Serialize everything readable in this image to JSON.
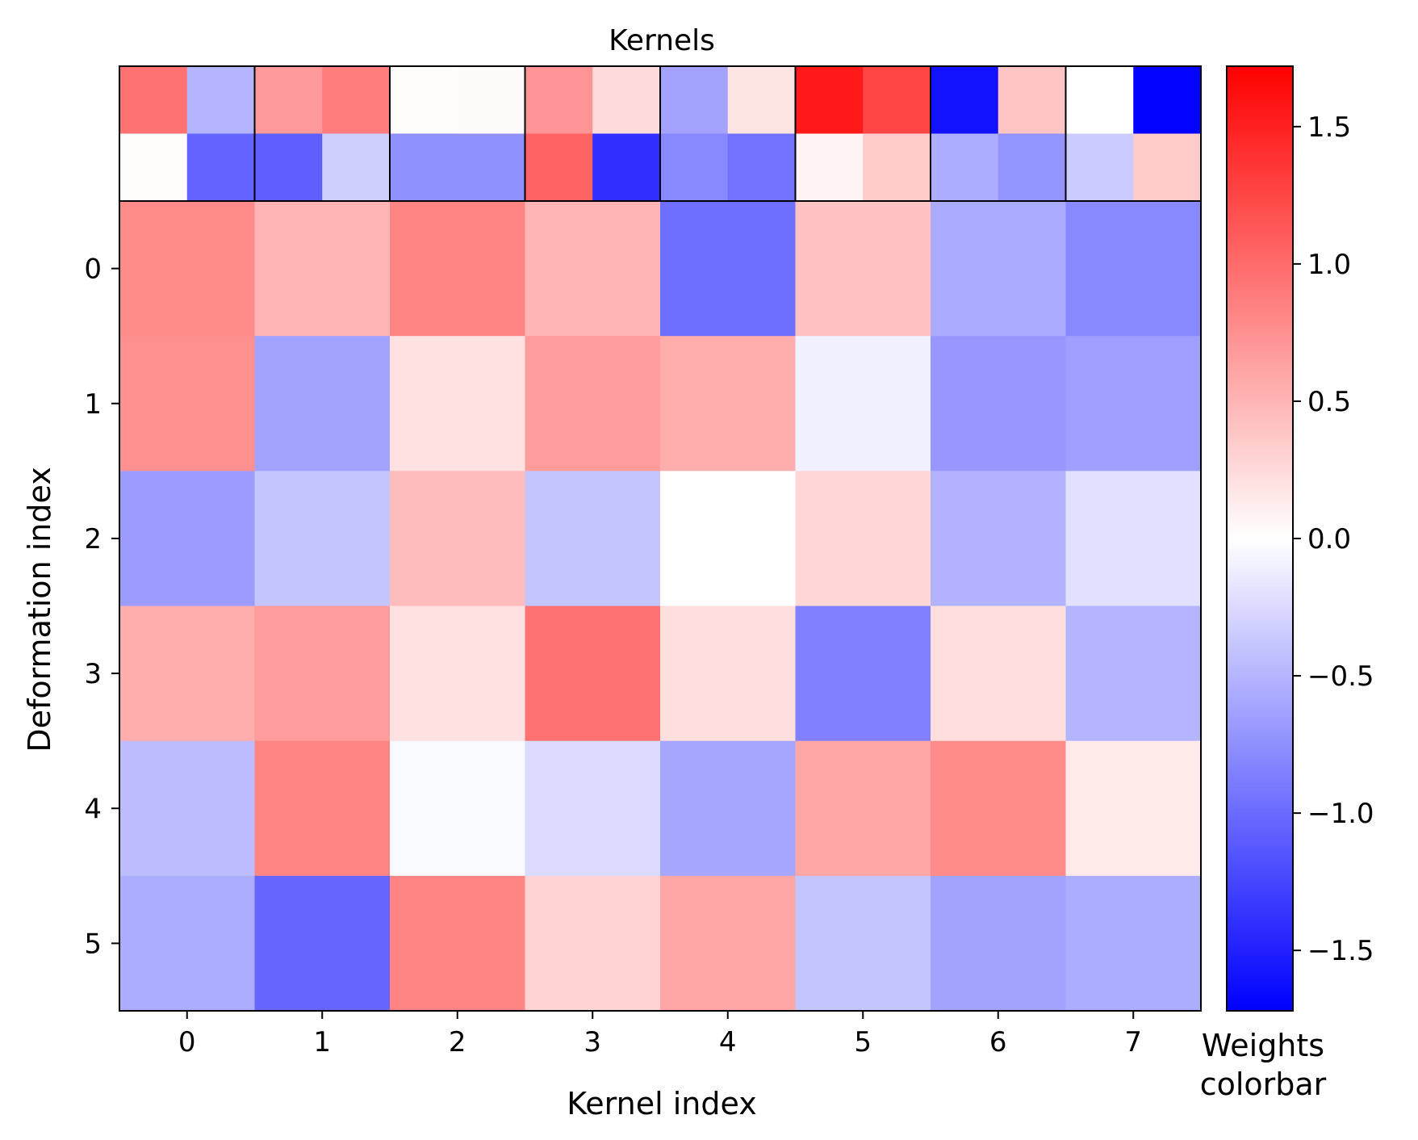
{
  "chart_data": {
    "type": "heatmap",
    "title": "Kernels",
    "xlabel": "Kernel index",
    "ylabel": "Deformation index",
    "colorbar_label": [
      "Weights",
      "colorbar"
    ],
    "colormap": {
      "low": "#0000ff",
      "mid": "#ffffff",
      "high": "#ff0000"
    },
    "vmin": -1.72,
    "vmax": 1.72,
    "x_ticks": [
      "0",
      "1",
      "2",
      "3",
      "4",
      "5",
      "6",
      "7"
    ],
    "y_ticks": [
      "0",
      "1",
      "2",
      "3",
      "4",
      "5"
    ],
    "colorbar_ticks": [
      {
        "value": 1.5,
        "label": "1.5"
      },
      {
        "value": 1.0,
        "label": "1.0"
      },
      {
        "value": 0.5,
        "label": "0.5"
      },
      {
        "value": 0.0,
        "label": "0.0"
      },
      {
        "value": -0.5,
        "label": "−0.5"
      },
      {
        "value": -1.0,
        "label": "−1.0"
      },
      {
        "value": -1.5,
        "label": "−1.5"
      }
    ],
    "kernels": [
      [
        [
          0.95,
          -0.5
        ],
        [
          0.02,
          -1.05
        ]
      ],
      [
        [
          0.68,
          0.88
        ],
        [
          -1.08,
          -0.33
        ]
      ],
      [
        [
          0.02,
          0.03
        ],
        [
          -0.75,
          -0.75
        ]
      ],
      [
        [
          0.72,
          0.25
        ],
        [
          1.05,
          -1.4
        ]
      ],
      [
        [
          -0.62,
          0.18
        ],
        [
          -0.8,
          -0.95
        ]
      ],
      [
        [
          1.55,
          1.25
        ],
        [
          0.08,
          0.35
        ]
      ],
      [
        [
          -1.6,
          0.4
        ],
        [
          -0.55,
          -0.72
        ]
      ],
      [
        [
          0.0,
          -1.7
        ],
        [
          -0.35,
          0.35
        ]
      ]
    ],
    "weights": [
      [
        0.78,
        0.5,
        0.82,
        0.5,
        -0.97,
        0.42,
        -0.57,
        -0.8
      ],
      [
        0.75,
        -0.63,
        0.2,
        0.67,
        0.55,
        -0.1,
        -0.7,
        -0.65
      ],
      [
        -0.67,
        -0.4,
        0.45,
        -0.4,
        0.0,
        0.27,
        -0.52,
        -0.2
      ],
      [
        0.55,
        0.67,
        0.2,
        0.95,
        0.22,
        -0.85,
        0.22,
        -0.5
      ],
      [
        -0.45,
        0.82,
        -0.05,
        -0.25,
        -0.6,
        0.6,
        0.78,
        0.15
      ],
      [
        -0.55,
        -1.03,
        0.82,
        0.3,
        0.6,
        -0.4,
        -0.63,
        -0.55
      ]
    ]
  }
}
